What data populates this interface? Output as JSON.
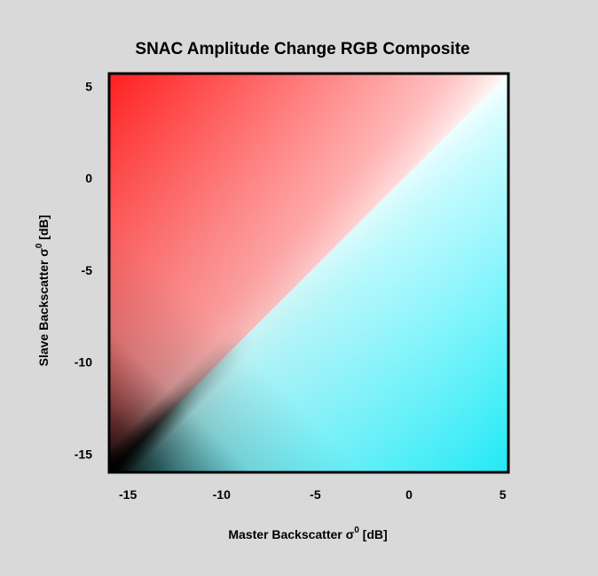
{
  "chart_data": {
    "type": "heatmap",
    "title": "SNAC Amplitude Change RGB Composite",
    "xlabel": "Master Backscatter σ",
    "xlabel_sup": "0",
    "xlabel_unit": " [dB]",
    "ylabel": "Slave Backscatter σ",
    "ylabel_sup": "0",
    "ylabel_unit": " [dB]",
    "xlim": [
      -16,
      5.3
    ],
    "ylim": [
      -16,
      5.7
    ],
    "xticks": [
      -15,
      -10,
      -5,
      0,
      5
    ],
    "yticks": [
      -15,
      -10,
      -5,
      0,
      5
    ],
    "colormap": {
      "description_colors": {
        "dark_corner": "#111111",
        "diagonal_high": "#ffffff",
        "upper_left_red": "#ff1a1a",
        "lower_right_cyan": "#1ae8f2"
      }
    },
    "grid": false
  }
}
